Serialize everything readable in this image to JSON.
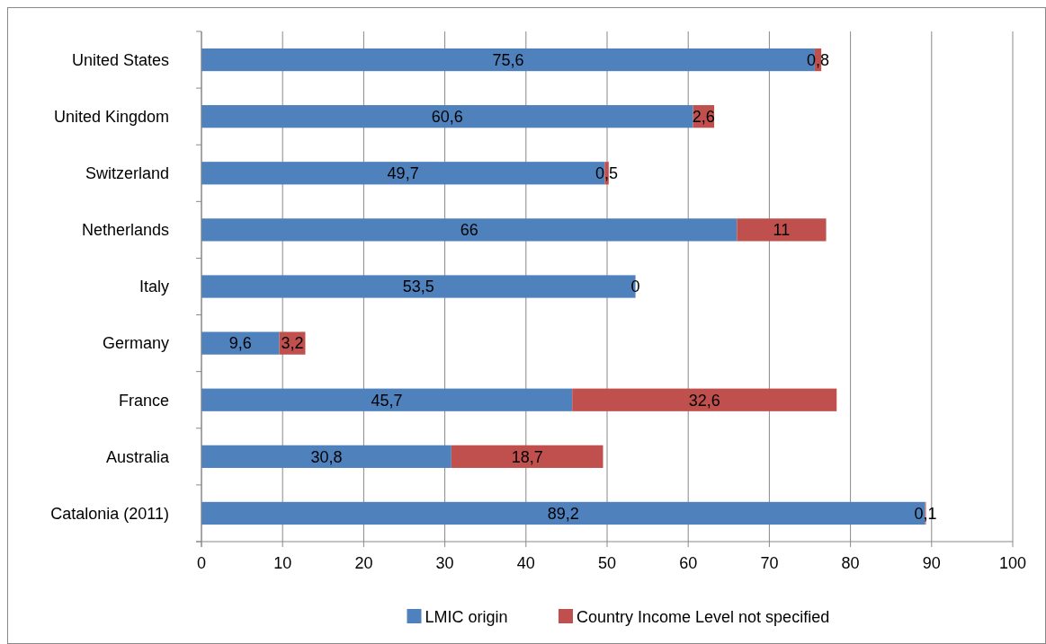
{
  "chart_data": {
    "type": "bar",
    "orientation": "horizontal",
    "stacked": true,
    "categories": [
      "United States",
      "United Kingdom",
      "Switzerland",
      "Netherlands",
      "Italy",
      "Germany",
      "France",
      "Australia",
      "Catalonia (2011)"
    ],
    "series": [
      {
        "name": "LMIC origin",
        "color": "#4f81bd",
        "values": [
          75.6,
          60.6,
          49.7,
          66,
          53.5,
          9.6,
          45.7,
          30.8,
          89.2
        ],
        "value_labels": [
          "75,6",
          "60,6",
          "49,7",
          "66",
          "53,5",
          "9,6",
          "45,7",
          "30,8",
          "89,2"
        ]
      },
      {
        "name": "Country Income  Level not specified",
        "color": "#c0504d",
        "values": [
          0.8,
          2.6,
          0.5,
          11,
          0,
          3.2,
          32.6,
          18.7,
          0.1
        ],
        "value_labels": [
          "0,8",
          "2,6",
          "0,5",
          "11",
          "0",
          "3,2",
          "32,6",
          "18,7",
          "0,1"
        ]
      }
    ],
    "xlim": [
      0,
      100
    ],
    "xticks": [
      0,
      10,
      20,
      30,
      40,
      50,
      60,
      70,
      80,
      90,
      100
    ],
    "grid": "x",
    "legend": "bottom"
  }
}
